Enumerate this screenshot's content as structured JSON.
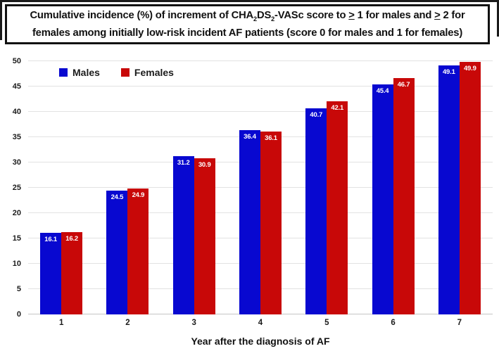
{
  "title": {
    "segments": [
      {
        "text": "Cumulative incidence (%) of increment of CHA"
      },
      {
        "text": "2",
        "style": "sub"
      },
      {
        "text": "DS"
      },
      {
        "text": "2",
        "style": "sub"
      },
      {
        "text": "-VASc score to "
      },
      {
        "text": ">",
        "style": "underline"
      },
      {
        "text": " 1 for males and "
      },
      {
        "text": ">",
        "style": "underline"
      },
      {
        "text": " 2 for"
      },
      {
        "style": "break"
      },
      {
        "text": "females among initially low-risk incident AF patients (score 0 for males and 1 for females)"
      }
    ]
  },
  "chart_data": {
    "type": "bar",
    "title": "Cumulative incidence (%) of increment of CHA2DS2-VASc score to ≥ 1 for males and ≥ 2 for females among initially low-risk incident AF patients (score 0 for males and 1 for females)",
    "categories": [
      "1",
      "2",
      "3",
      "4",
      "5",
      "6",
      "7"
    ],
    "series": [
      {
        "name": "Males",
        "color": "#0808d0",
        "values": [
          16.1,
          24.5,
          31.2,
          36.4,
          40.7,
          45.4,
          49.1
        ]
      },
      {
        "name": "Females",
        "color": "#c80808",
        "values": [
          16.2,
          24.9,
          30.9,
          36.1,
          42.1,
          46.7,
          49.9
        ]
      }
    ],
    "xlabel": "Year after the diagnosis of AF",
    "ylabel": "",
    "ylim": [
      0,
      50
    ],
    "ytick_step": 5,
    "grid": true,
    "legend_position": "top-left-inside",
    "value_labels": "inside-end-white"
  }
}
